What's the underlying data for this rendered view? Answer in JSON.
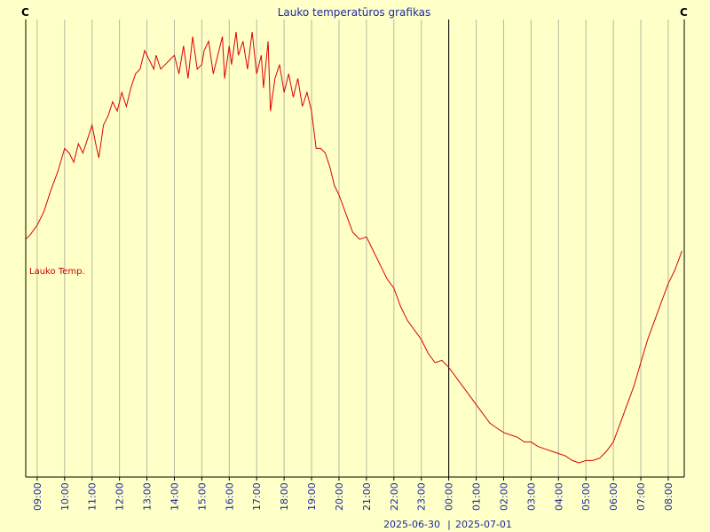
{
  "chart_data": {
    "type": "line",
    "title": "Lauko temperatūros grafikas",
    "left_unit": "C",
    "right_unit": "C",
    "series_label": "Lauko Temp.",
    "line_color": "#dd0000",
    "background_color": "#ffffc8",
    "grid": true,
    "x_ticks": [
      "09:00",
      "10:00",
      "11:00",
      "12:00",
      "13:00",
      "14:00",
      "15:00",
      "16:00",
      "17:00",
      "18:00",
      "19:00",
      "20:00",
      "21:00",
      "22:00",
      "23:00",
      "00:00",
      "01:00",
      "02:00",
      "03:00",
      "04:00",
      "05:00",
      "06:00",
      "07:00",
      "08:00"
    ],
    "x_range": [
      "2025-06-30 08:35",
      "2025-07-01 08:35"
    ],
    "day_separator": "00:00",
    "date_left": "2025-06-30",
    "date_right": "2025-07-01",
    "y_axis_labels": "none",
    "series": [
      {
        "name": "Lauko Temp.",
        "x": [
          "08:35",
          "08:45",
          "09:00",
          "09:15",
          "09:30",
          "09:45",
          "10:00",
          "10:10",
          "10:20",
          "10:30",
          "10:40",
          "10:50",
          "11:00",
          "11:10",
          "11:15",
          "11:25",
          "11:35",
          "11:45",
          "11:55",
          "12:05",
          "12:15",
          "12:25",
          "12:35",
          "12:45",
          "12:55",
          "13:05",
          "13:15",
          "13:20",
          "13:30",
          "13:40",
          "13:50",
          "14:00",
          "14:10",
          "14:20",
          "14:30",
          "14:40",
          "14:50",
          "15:00",
          "15:05",
          "15:15",
          "15:25",
          "15:35",
          "15:45",
          "15:50",
          "16:00",
          "16:05",
          "16:15",
          "16:20",
          "16:30",
          "16:40",
          "16:50",
          "17:00",
          "17:10",
          "17:15",
          "17:25",
          "17:30",
          "17:40",
          "17:50",
          "18:00",
          "18:10",
          "18:20",
          "18:30",
          "18:40",
          "18:50",
          "19:00",
          "19:10",
          "19:20",
          "19:30",
          "19:40",
          "19:50",
          "20:00",
          "20:15",
          "20:30",
          "20:45",
          "21:00",
          "21:15",
          "21:30",
          "21:45",
          "22:00",
          "22:15",
          "22:30",
          "22:45",
          "23:00",
          "23:15",
          "23:30",
          "23:45",
          "00:00",
          "00:15",
          "00:30",
          "00:45",
          "01:00",
          "01:15",
          "01:30",
          "01:45",
          "02:00",
          "02:15",
          "02:30",
          "02:45",
          "03:00",
          "03:15",
          "03:30",
          "03:45",
          "04:00",
          "04:15",
          "04:30",
          "04:45",
          "05:00",
          "05:15",
          "05:30",
          "05:45",
          "06:00",
          "06:15",
          "06:30",
          "06:45",
          "07:00",
          "07:15",
          "07:30",
          "07:45",
          "08:00",
          "08:15",
          "08:30"
        ],
        "values": [
          50.5,
          51.5,
          53.5,
          56.5,
          61,
          65,
          70,
          69,
          67,
          71,
          69,
          72,
          75,
          70,
          68,
          75,
          77,
          80,
          78,
          82,
          79,
          83,
          86,
          87,
          91,
          89,
          87,
          90,
          87,
          88,
          89,
          90,
          86,
          92,
          85,
          94,
          87,
          88,
          91,
          93,
          86,
          90,
          94,
          85,
          92,
          88,
          95,
          90,
          93,
          87,
          95,
          86,
          90,
          83,
          93,
          78,
          85,
          88,
          82,
          86,
          81,
          85,
          79,
          82,
          78,
          70,
          70,
          69,
          66,
          62,
          60,
          56,
          52,
          50.5,
          51,
          48,
          45,
          42,
          40,
          36,
          33,
          31,
          29,
          26,
          24,
          24.5,
          23,
          21,
          19,
          17,
          15,
          13,
          11,
          10,
          9,
          8.5,
          8,
          7,
          7,
          6,
          5.5,
          5,
          4.5,
          4,
          3,
          2.5,
          3,
          3,
          3.5,
          5,
          7,
          11,
          15,
          19,
          24,
          29,
          33,
          37,
          41,
          44,
          48
        ]
      }
    ]
  }
}
